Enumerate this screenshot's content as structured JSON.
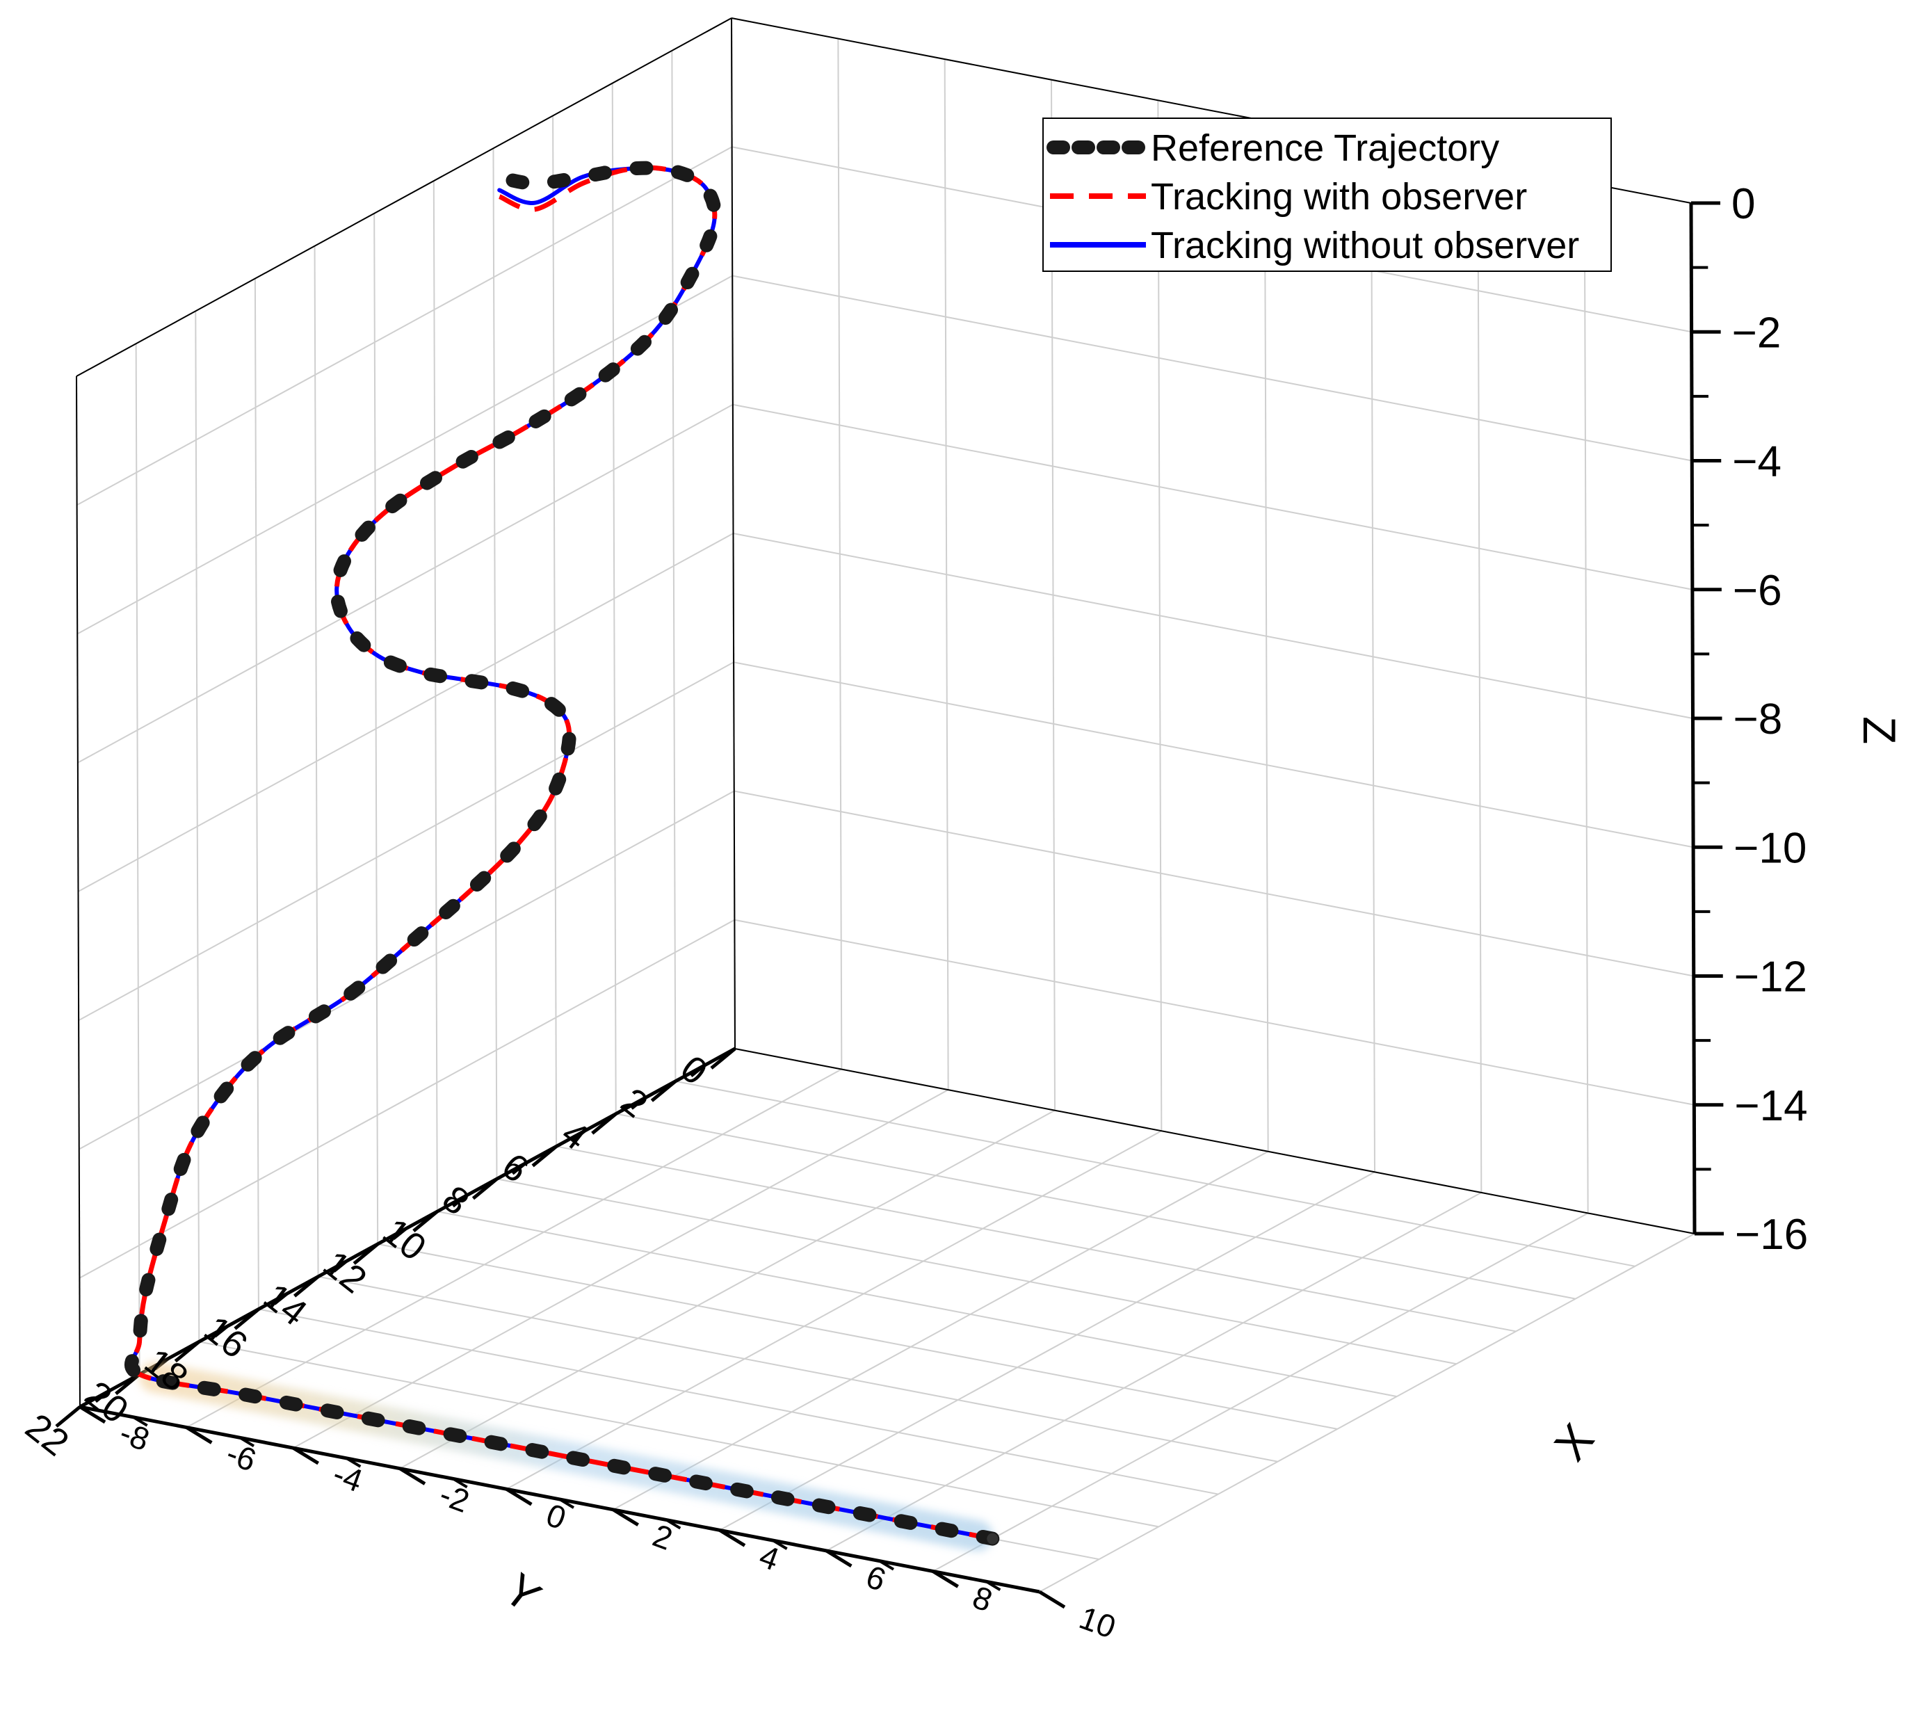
{
  "chart_data": {
    "type": "line",
    "projection": "3d",
    "xlabel": "X",
    "ylabel": "Y",
    "zlabel": "Z",
    "xlim": [
      -8,
      10
    ],
    "ylim": [
      0,
      22
    ],
    "zlim": [
      -16,
      0
    ],
    "x_ticks": [
      "-8",
      "-6",
      "-4",
      "-2",
      "0",
      "2",
      "4",
      "6",
      "8",
      "10"
    ],
    "y_ticks": [
      "0",
      "2",
      "4",
      "6",
      "8",
      "10",
      "12",
      "14",
      "16",
      "18",
      "20",
      "22"
    ],
    "z_ticks": [
      "0",
      "−2",
      "−4",
      "−6",
      "−8",
      "−10",
      "−12",
      "−14",
      "−16"
    ],
    "grid": true,
    "legend_position": "top-right",
    "colors": {
      "reference": "#1a1a1a",
      "with_observer": "#ff0000",
      "without_observer": "#0000ff",
      "highlight_start": "#f2c98a",
      "highlight_end": "#9cc6e6"
    },
    "series": [
      {
        "name": "Reference Trajectory",
        "style": "dotted",
        "points": [
          [
            8.0,
            20.0,
            -16.0
          ],
          [
            5.0,
            20.0,
            -16.0
          ],
          [
            3.0,
            20.0,
            -16.0
          ],
          [
            0.0,
            20.0,
            -16.0
          ],
          [
            -3.0,
            20.0,
            -16.0
          ],
          [
            -6.0,
            20.0,
            -16.0
          ],
          [
            -8.0,
            20.0,
            -16.0
          ],
          [
            -8.0,
            20.0,
            -15.5
          ],
          [
            -8.0,
            19.8,
            -14.8
          ],
          [
            -8.0,
            19.1,
            -13.8
          ],
          [
            -8.0,
            18.3,
            -12.9
          ],
          [
            -8.0,
            17.0,
            -12.3
          ],
          [
            -8.0,
            15.5,
            -12.0
          ],
          [
            -8.0,
            13.0,
            -11.9
          ],
          [
            -8.0,
            10.8,
            -11.6
          ],
          [
            -8.0,
            8.8,
            -11.3
          ],
          [
            -8.0,
            7.3,
            -11.0
          ],
          [
            -8.0,
            6.2,
            -10.6
          ],
          [
            -8.0,
            5.6,
            -10.0
          ],
          [
            -8.0,
            5.6,
            -9.5
          ],
          [
            -8.0,
            6.3,
            -9.0
          ],
          [
            -8.0,
            7.5,
            -8.5
          ],
          [
            -8.0,
            9.0,
            -8.0
          ],
          [
            -8.0,
            10.5,
            -7.5
          ],
          [
            -8.0,
            11.9,
            -6.9
          ],
          [
            -8.0,
            12.9,
            -6.2
          ],
          [
            -8.0,
            13.3,
            -5.5
          ],
          [
            -8.0,
            12.8,
            -5.0
          ],
          [
            -8.0,
            11.5,
            -4.7
          ],
          [
            -8.0,
            9.3,
            -4.6
          ],
          [
            -8.0,
            7.0,
            -4.6
          ],
          [
            -8.0,
            4.6,
            -4.5
          ],
          [
            -8.0,
            2.6,
            -4.2
          ],
          [
            -8.0,
            1.3,
            -3.6
          ],
          [
            -8.0,
            0.6,
            -3.0
          ],
          [
            -8.0,
            0.9,
            -2.4
          ],
          [
            -8.0,
            1.9,
            -1.9
          ],
          [
            -8.0,
            3.3,
            -1.5
          ],
          [
            -8.0,
            5.0,
            -1.2
          ],
          [
            -8.0,
            6.6,
            -0.9
          ],
          [
            -8.0,
            7.8,
            -0.5
          ]
        ]
      },
      {
        "name": "Tracking with observer",
        "style": "dashed",
        "points": [
          [
            8.0,
            20.0,
            -16.0
          ],
          [
            5.0,
            20.0,
            -16.0
          ],
          [
            3.0,
            20.0,
            -16.0
          ],
          [
            0.0,
            20.0,
            -16.0
          ],
          [
            -3.0,
            20.0,
            -16.0
          ],
          [
            -6.0,
            20.0,
            -16.0
          ],
          [
            -8.0,
            20.0,
            -16.0
          ],
          [
            -8.0,
            20.0,
            -15.5
          ],
          [
            -8.0,
            19.8,
            -14.8
          ],
          [
            -8.0,
            19.1,
            -13.8
          ],
          [
            -8.0,
            18.3,
            -12.9
          ],
          [
            -8.0,
            17.0,
            -12.3
          ],
          [
            -8.0,
            15.5,
            -12.0
          ],
          [
            -8.0,
            13.0,
            -11.9
          ],
          [
            -8.0,
            10.8,
            -11.6
          ],
          [
            -8.0,
            8.8,
            -11.3
          ],
          [
            -8.0,
            7.3,
            -11.0
          ],
          [
            -8.0,
            6.2,
            -10.6
          ],
          [
            -8.0,
            5.6,
            -10.0
          ],
          [
            -8.0,
            5.6,
            -9.5
          ],
          [
            -8.0,
            6.3,
            -9.0
          ],
          [
            -8.0,
            7.5,
            -8.5
          ],
          [
            -8.0,
            9.0,
            -8.0
          ],
          [
            -8.0,
            10.5,
            -7.5
          ],
          [
            -8.0,
            11.9,
            -6.9
          ],
          [
            -8.0,
            12.9,
            -6.2
          ],
          [
            -8.0,
            13.3,
            -5.5
          ],
          [
            -8.0,
            12.8,
            -5.0
          ],
          [
            -8.0,
            11.5,
            -4.7
          ],
          [
            -8.0,
            9.3,
            -4.6
          ],
          [
            -8.0,
            7.0,
            -4.6
          ],
          [
            -8.0,
            4.6,
            -4.5
          ],
          [
            -8.0,
            2.6,
            -4.2
          ],
          [
            -8.0,
            1.3,
            -3.6
          ],
          [
            -8.0,
            0.6,
            -3.0
          ],
          [
            -8.0,
            0.9,
            -2.4
          ],
          [
            -8.0,
            1.9,
            -1.9
          ],
          [
            -8.0,
            3.3,
            -1.5
          ],
          [
            -8.0,
            5.0,
            -1.3
          ],
          [
            -8.0,
            6.6,
            -1.3
          ],
          [
            -8.0,
            7.8,
            -0.8
          ]
        ]
      },
      {
        "name": "Tracking without observer",
        "style": "solid",
        "points": [
          [
            8.0,
            20.0,
            -16.0
          ],
          [
            5.0,
            20.0,
            -16.0
          ],
          [
            3.0,
            20.0,
            -16.0
          ],
          [
            0.0,
            20.0,
            -16.0
          ],
          [
            -3.0,
            20.0,
            -16.0
          ],
          [
            -6.0,
            20.0,
            -16.0
          ],
          [
            -8.0,
            20.0,
            -16.0
          ],
          [
            -8.0,
            20.0,
            -15.5
          ],
          [
            -8.0,
            19.8,
            -14.8
          ],
          [
            -8.0,
            19.1,
            -13.8
          ],
          [
            -8.0,
            18.3,
            -12.9
          ],
          [
            -8.0,
            17.0,
            -12.3
          ],
          [
            -8.0,
            15.5,
            -12.0
          ],
          [
            -8.0,
            13.0,
            -11.9
          ],
          [
            -8.0,
            10.8,
            -11.6
          ],
          [
            -8.0,
            8.8,
            -11.3
          ],
          [
            -8.0,
            7.3,
            -11.0
          ],
          [
            -8.0,
            6.2,
            -10.6
          ],
          [
            -8.0,
            5.6,
            -10.0
          ],
          [
            -8.0,
            5.6,
            -9.5
          ],
          [
            -8.0,
            6.3,
            -9.0
          ],
          [
            -8.0,
            7.5,
            -8.5
          ],
          [
            -8.0,
            9.0,
            -8.0
          ],
          [
            -8.0,
            10.5,
            -7.5
          ],
          [
            -8.0,
            11.9,
            -6.9
          ],
          [
            -8.0,
            12.9,
            -6.2
          ],
          [
            -8.0,
            13.3,
            -5.5
          ],
          [
            -8.0,
            12.8,
            -5.0
          ],
          [
            -8.0,
            11.5,
            -4.7
          ],
          [
            -8.0,
            9.3,
            -4.6
          ],
          [
            -8.0,
            7.0,
            -4.6
          ],
          [
            -8.0,
            4.6,
            -4.5
          ],
          [
            -8.0,
            2.6,
            -4.2
          ],
          [
            -8.0,
            1.3,
            -3.6
          ],
          [
            -8.0,
            0.6,
            -3.0
          ],
          [
            -8.0,
            0.9,
            -2.4
          ],
          [
            -8.0,
            1.9,
            -1.9
          ],
          [
            -8.0,
            3.3,
            -1.5
          ],
          [
            -8.0,
            5.0,
            -1.2
          ],
          [
            -8.0,
            6.6,
            -1.2
          ],
          [
            -8.0,
            7.8,
            -0.7
          ]
        ]
      }
    ]
  }
}
